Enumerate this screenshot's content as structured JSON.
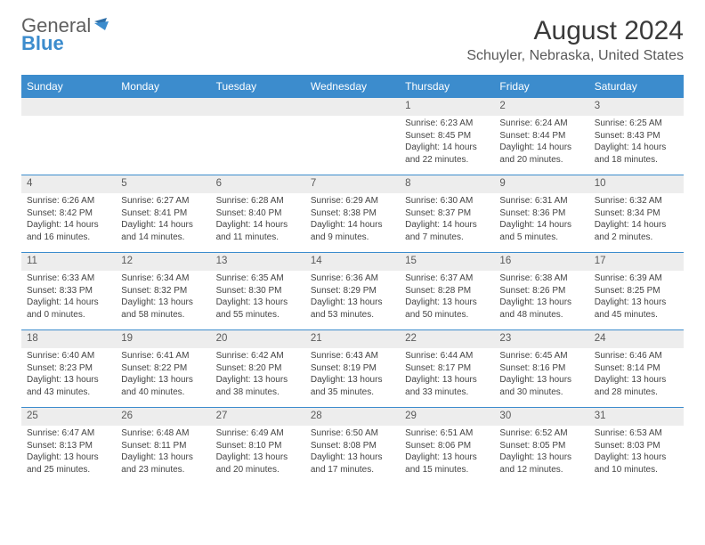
{
  "logo": {
    "word1": "General",
    "word2": "Blue"
  },
  "header": {
    "month_title": "August 2024",
    "location": "Schuyler, Nebraska, United States"
  },
  "colors": {
    "brand": "#3c8ccd",
    "header_text": "#5f5f5f",
    "daynum_bg": "#ededed",
    "body_text": "#444444"
  },
  "weekdays": [
    "Sunday",
    "Monday",
    "Tuesday",
    "Wednesday",
    "Thursday",
    "Friday",
    "Saturday"
  ],
  "weeks": [
    [
      {
        "num": "",
        "sunrise": "",
        "sunset": "",
        "daylight1": "",
        "daylight2": ""
      },
      {
        "num": "",
        "sunrise": "",
        "sunset": "",
        "daylight1": "",
        "daylight2": ""
      },
      {
        "num": "",
        "sunrise": "",
        "sunset": "",
        "daylight1": "",
        "daylight2": ""
      },
      {
        "num": "",
        "sunrise": "",
        "sunset": "",
        "daylight1": "",
        "daylight2": ""
      },
      {
        "num": "1",
        "sunrise": "Sunrise: 6:23 AM",
        "sunset": "Sunset: 8:45 PM",
        "daylight1": "Daylight: 14 hours",
        "daylight2": "and 22 minutes."
      },
      {
        "num": "2",
        "sunrise": "Sunrise: 6:24 AM",
        "sunset": "Sunset: 8:44 PM",
        "daylight1": "Daylight: 14 hours",
        "daylight2": "and 20 minutes."
      },
      {
        "num": "3",
        "sunrise": "Sunrise: 6:25 AM",
        "sunset": "Sunset: 8:43 PM",
        "daylight1": "Daylight: 14 hours",
        "daylight2": "and 18 minutes."
      }
    ],
    [
      {
        "num": "4",
        "sunrise": "Sunrise: 6:26 AM",
        "sunset": "Sunset: 8:42 PM",
        "daylight1": "Daylight: 14 hours",
        "daylight2": "and 16 minutes."
      },
      {
        "num": "5",
        "sunrise": "Sunrise: 6:27 AM",
        "sunset": "Sunset: 8:41 PM",
        "daylight1": "Daylight: 14 hours",
        "daylight2": "and 14 minutes."
      },
      {
        "num": "6",
        "sunrise": "Sunrise: 6:28 AM",
        "sunset": "Sunset: 8:40 PM",
        "daylight1": "Daylight: 14 hours",
        "daylight2": "and 11 minutes."
      },
      {
        "num": "7",
        "sunrise": "Sunrise: 6:29 AM",
        "sunset": "Sunset: 8:38 PM",
        "daylight1": "Daylight: 14 hours",
        "daylight2": "and 9 minutes."
      },
      {
        "num": "8",
        "sunrise": "Sunrise: 6:30 AM",
        "sunset": "Sunset: 8:37 PM",
        "daylight1": "Daylight: 14 hours",
        "daylight2": "and 7 minutes."
      },
      {
        "num": "9",
        "sunrise": "Sunrise: 6:31 AM",
        "sunset": "Sunset: 8:36 PM",
        "daylight1": "Daylight: 14 hours",
        "daylight2": "and 5 minutes."
      },
      {
        "num": "10",
        "sunrise": "Sunrise: 6:32 AM",
        "sunset": "Sunset: 8:34 PM",
        "daylight1": "Daylight: 14 hours",
        "daylight2": "and 2 minutes."
      }
    ],
    [
      {
        "num": "11",
        "sunrise": "Sunrise: 6:33 AM",
        "sunset": "Sunset: 8:33 PM",
        "daylight1": "Daylight: 14 hours",
        "daylight2": "and 0 minutes."
      },
      {
        "num": "12",
        "sunrise": "Sunrise: 6:34 AM",
        "sunset": "Sunset: 8:32 PM",
        "daylight1": "Daylight: 13 hours",
        "daylight2": "and 58 minutes."
      },
      {
        "num": "13",
        "sunrise": "Sunrise: 6:35 AM",
        "sunset": "Sunset: 8:30 PM",
        "daylight1": "Daylight: 13 hours",
        "daylight2": "and 55 minutes."
      },
      {
        "num": "14",
        "sunrise": "Sunrise: 6:36 AM",
        "sunset": "Sunset: 8:29 PM",
        "daylight1": "Daylight: 13 hours",
        "daylight2": "and 53 minutes."
      },
      {
        "num": "15",
        "sunrise": "Sunrise: 6:37 AM",
        "sunset": "Sunset: 8:28 PM",
        "daylight1": "Daylight: 13 hours",
        "daylight2": "and 50 minutes."
      },
      {
        "num": "16",
        "sunrise": "Sunrise: 6:38 AM",
        "sunset": "Sunset: 8:26 PM",
        "daylight1": "Daylight: 13 hours",
        "daylight2": "and 48 minutes."
      },
      {
        "num": "17",
        "sunrise": "Sunrise: 6:39 AM",
        "sunset": "Sunset: 8:25 PM",
        "daylight1": "Daylight: 13 hours",
        "daylight2": "and 45 minutes."
      }
    ],
    [
      {
        "num": "18",
        "sunrise": "Sunrise: 6:40 AM",
        "sunset": "Sunset: 8:23 PM",
        "daylight1": "Daylight: 13 hours",
        "daylight2": "and 43 minutes."
      },
      {
        "num": "19",
        "sunrise": "Sunrise: 6:41 AM",
        "sunset": "Sunset: 8:22 PM",
        "daylight1": "Daylight: 13 hours",
        "daylight2": "and 40 minutes."
      },
      {
        "num": "20",
        "sunrise": "Sunrise: 6:42 AM",
        "sunset": "Sunset: 8:20 PM",
        "daylight1": "Daylight: 13 hours",
        "daylight2": "and 38 minutes."
      },
      {
        "num": "21",
        "sunrise": "Sunrise: 6:43 AM",
        "sunset": "Sunset: 8:19 PM",
        "daylight1": "Daylight: 13 hours",
        "daylight2": "and 35 minutes."
      },
      {
        "num": "22",
        "sunrise": "Sunrise: 6:44 AM",
        "sunset": "Sunset: 8:17 PM",
        "daylight1": "Daylight: 13 hours",
        "daylight2": "and 33 minutes."
      },
      {
        "num": "23",
        "sunrise": "Sunrise: 6:45 AM",
        "sunset": "Sunset: 8:16 PM",
        "daylight1": "Daylight: 13 hours",
        "daylight2": "and 30 minutes."
      },
      {
        "num": "24",
        "sunrise": "Sunrise: 6:46 AM",
        "sunset": "Sunset: 8:14 PM",
        "daylight1": "Daylight: 13 hours",
        "daylight2": "and 28 minutes."
      }
    ],
    [
      {
        "num": "25",
        "sunrise": "Sunrise: 6:47 AM",
        "sunset": "Sunset: 8:13 PM",
        "daylight1": "Daylight: 13 hours",
        "daylight2": "and 25 minutes."
      },
      {
        "num": "26",
        "sunrise": "Sunrise: 6:48 AM",
        "sunset": "Sunset: 8:11 PM",
        "daylight1": "Daylight: 13 hours",
        "daylight2": "and 23 minutes."
      },
      {
        "num": "27",
        "sunrise": "Sunrise: 6:49 AM",
        "sunset": "Sunset: 8:10 PM",
        "daylight1": "Daylight: 13 hours",
        "daylight2": "and 20 minutes."
      },
      {
        "num": "28",
        "sunrise": "Sunrise: 6:50 AM",
        "sunset": "Sunset: 8:08 PM",
        "daylight1": "Daylight: 13 hours",
        "daylight2": "and 17 minutes."
      },
      {
        "num": "29",
        "sunrise": "Sunrise: 6:51 AM",
        "sunset": "Sunset: 8:06 PM",
        "daylight1": "Daylight: 13 hours",
        "daylight2": "and 15 minutes."
      },
      {
        "num": "30",
        "sunrise": "Sunrise: 6:52 AM",
        "sunset": "Sunset: 8:05 PM",
        "daylight1": "Daylight: 13 hours",
        "daylight2": "and 12 minutes."
      },
      {
        "num": "31",
        "sunrise": "Sunrise: 6:53 AM",
        "sunset": "Sunset: 8:03 PM",
        "daylight1": "Daylight: 13 hours",
        "daylight2": "and 10 minutes."
      }
    ]
  ]
}
